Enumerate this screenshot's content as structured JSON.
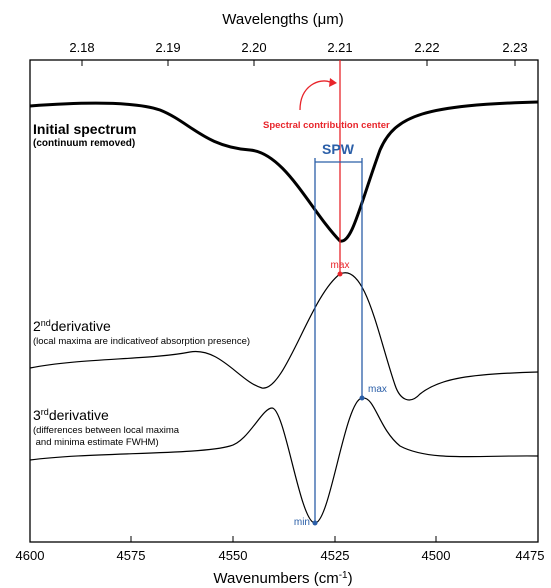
{
  "top_axis": {
    "title": "Wavelengths (μm)",
    "ticks": [
      "2.18",
      "2.19",
      "2.20",
      "2.21",
      "2.22",
      "2.23"
    ]
  },
  "bottom_axis": {
    "title_main": "Wavenumbers (cm",
    "title_sup": "-1",
    "title_close": ")",
    "ticks": [
      "4600",
      "4575",
      "4550",
      "4525",
      "4500",
      "4475"
    ]
  },
  "labels": {
    "initial_title": "Initial spectrum",
    "initial_sub": "(continuum removed)",
    "center_label": "Spectral contribution center",
    "spw": "SPW",
    "max_red": "max",
    "max_blue": "max",
    "min_blue": "min",
    "d2_num": "2",
    "d2_sup": "nd",
    "d2_word": "derivative",
    "d2_sub": "(local maxima are indicativeof absorption presence)",
    "d3_num": "3",
    "d3_sup": "rd",
    "d3_word": "derivative",
    "d3_sub1": "(differences between local maxima",
    "d3_sub2": " and minima estimate FWHM)"
  },
  "colors": {
    "red": "#e8252b",
    "blue": "#2b5fa8",
    "black": "#000000"
  }
}
